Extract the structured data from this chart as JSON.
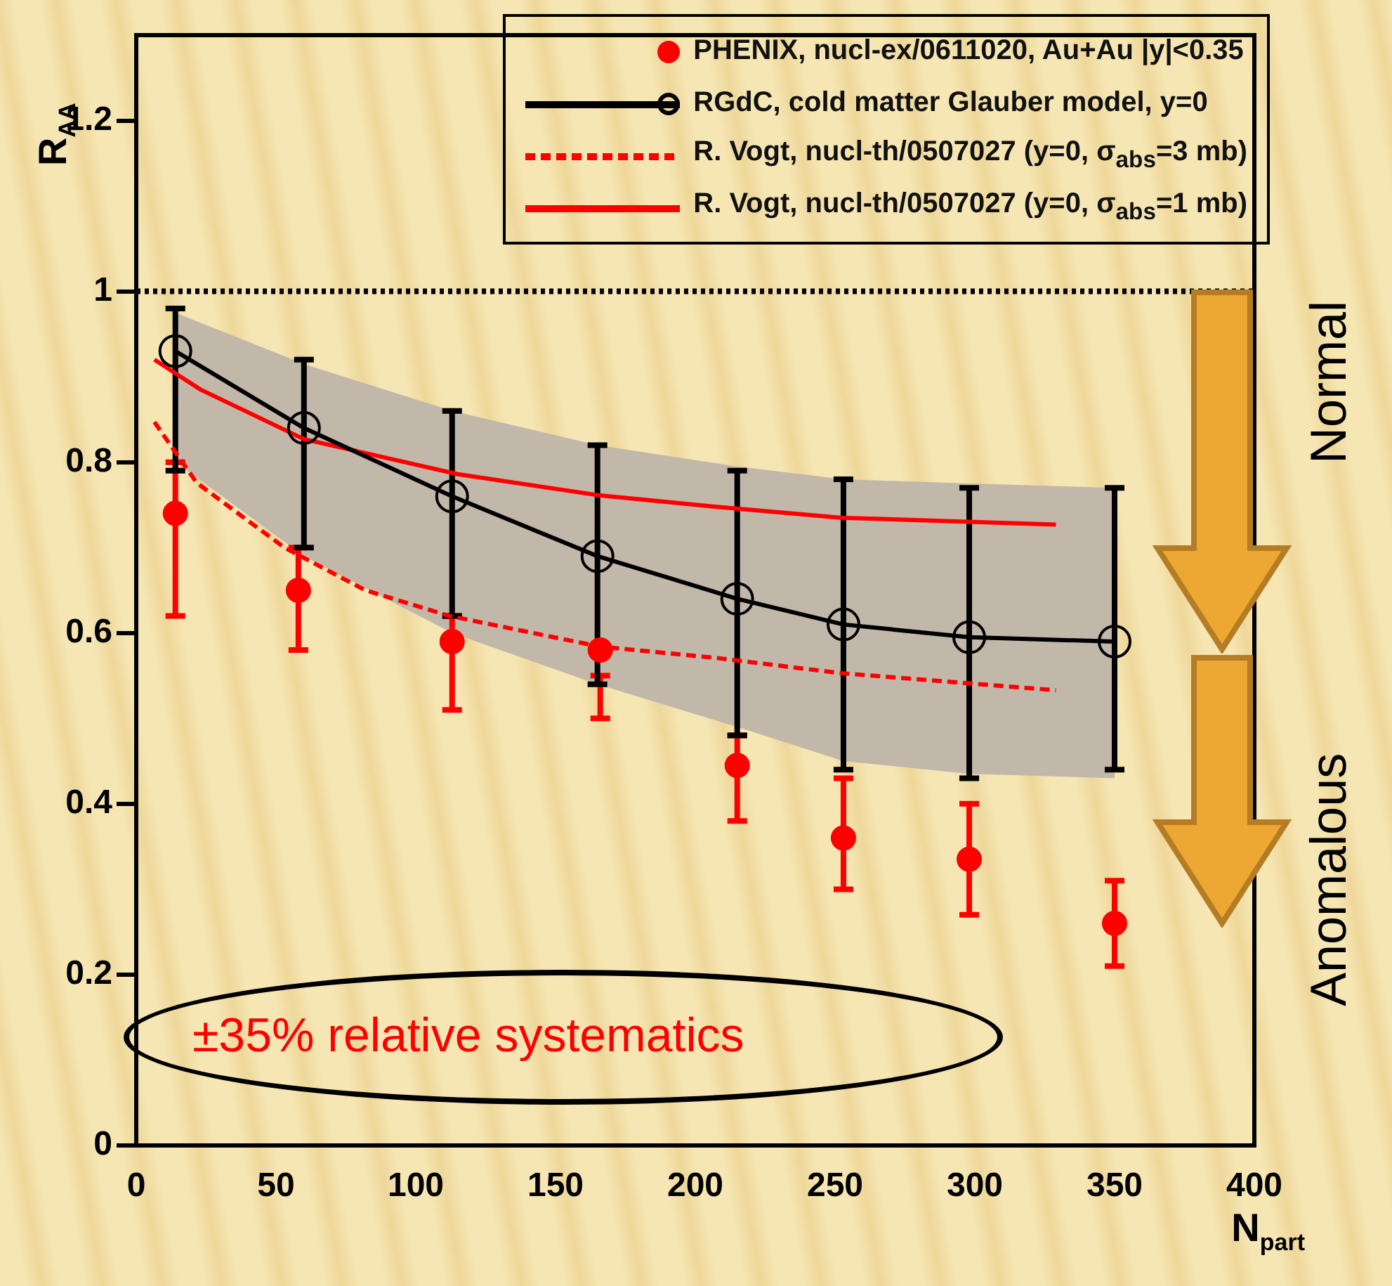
{
  "chart_data": {
    "type": "line",
    "xlabel": "N$_{part}$",
    "ylabel": "R$_{AA}$",
    "xlim": [
      0,
      400
    ],
    "xticks": [
      0,
      50,
      100,
      150,
      200,
      250,
      300,
      350,
      400
    ],
    "ylim": [
      0,
      1.3
    ],
    "yticks": [
      0,
      0.2,
      0.4,
      0.6,
      0.8,
      1,
      1.2
    ],
    "grid": false,
    "legend": "top right",
    "ref_lines": [
      {
        "axis": "y",
        "value": 1,
        "color": "#000000",
        "line_style": "dotted"
      }
    ],
    "annotations": [
      "±35% relative systematics",
      "Normal",
      "Anomalous"
    ],
    "series": [
      {
        "type": "scatter",
        "name": "PHENIX, nucl-ex/0611020, Au+Au |y|<0.35",
        "color": "#ff0000",
        "marker": "circle",
        "x": [
          14,
          58,
          113,
          166,
          215,
          253,
          298,
          350
        ],
        "values": [
          0.74,
          0.65,
          0.59,
          0.58,
          0.445,
          0.36,
          0.335,
          0.26
        ],
        "errors": [
          [
            0.62,
            0.8
          ],
          [
            0.58,
            0.7
          ],
          [
            0.51,
            0.62
          ],
          [
            0.5,
            0.55
          ],
          [
            0.38,
            0.48
          ],
          [
            0.3,
            0.43
          ],
          [
            0.27,
            0.4
          ],
          [
            0.21,
            0.31
          ]
        ]
      },
      {
        "type": "line",
        "name": "RGdC, cold matter Glauber model, y=0",
        "color": "#000000",
        "marker": "circle",
        "line_style": "solid",
        "x": [
          14,
          60,
          113,
          165,
          215,
          253,
          298,
          350
        ],
        "values": [
          0.93,
          0.84,
          0.76,
          0.69,
          0.64,
          0.61,
          0.595,
          0.59
        ],
        "errors": [
          [
            0.79,
            0.98
          ],
          [
            0.7,
            0.92
          ],
          [
            0.62,
            0.86
          ],
          [
            0.54,
            0.82
          ],
          [
            0.48,
            0.79
          ],
          [
            0.44,
            0.78
          ],
          [
            0.43,
            0.77
          ],
          [
            0.44,
            0.77
          ]
        ],
        "lower": [
          0.8,
          0.69,
          0.6,
          0.54,
          0.49,
          0.45,
          0.435,
          0.43
        ],
        "upper": [
          0.975,
          0.915,
          0.86,
          0.82,
          0.795,
          0.78,
          0.775,
          0.77
        ]
      },
      {
        "type": "line",
        "name": "R. Vogt, nucl-th/0507027 (y=0, σ$_{abs}$=3 mb)",
        "color": "#ff0000",
        "marker": "none",
        "line_style": "dashed",
        "x": [
          6.5,
          21.6,
          53,
          82,
          112,
          166,
          207,
          252,
          329
        ],
        "values": [
          0.847,
          0.776,
          0.7,
          0.65,
          0.62,
          0.584,
          0.571,
          0.553,
          0.533
        ]
      },
      {
        "type": "line",
        "name": "R. Vogt, nucl-th/0507027 (y=0, σ$_{abs}$=1 mb)",
        "color": "#ff0000",
        "marker": "none",
        "line_style": "solid",
        "x": [
          6.5,
          23,
          60,
          115,
          166,
          207,
          252,
          329
        ],
        "values": [
          0.92,
          0.885,
          0.827,
          0.786,
          0.761,
          0.748,
          0.735,
          0.727
        ]
      }
    ]
  }
}
